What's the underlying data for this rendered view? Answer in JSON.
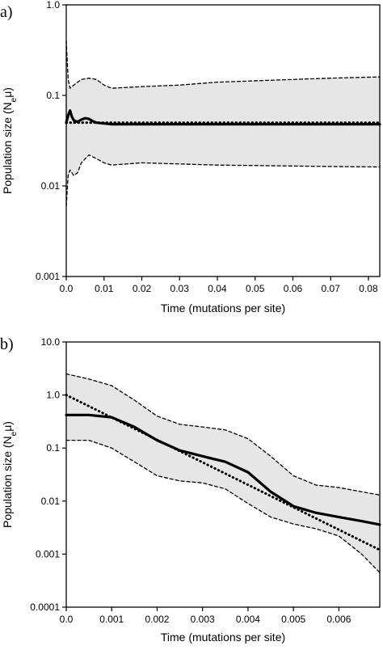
{
  "chart_data": [
    {
      "panel_label": "a)",
      "type": "line",
      "yscale": "log",
      "xlabel": "Time (mutations per site)",
      "ylabel": {
        "base": "Population size (N",
        "sub": "e",
        "tail": "μ)"
      },
      "xlim": [
        0,
        0.083
      ],
      "ylim": [
        0.001,
        1.0
      ],
      "xticks": [
        0.0,
        0.01,
        0.02,
        0.03,
        0.04,
        0.05,
        0.06,
        0.07,
        0.08
      ],
      "xtick_labels": [
        "0.0",
        "0.01",
        "0.02",
        "0.03",
        "0.04",
        "0.05",
        "0.06",
        "0.07",
        "0.08"
      ],
      "yticks": [
        0.001,
        0.01,
        0.1,
        1.0
      ],
      "ytick_labels": [
        "0.001",
        "0.01",
        "0.1",
        "1.0"
      ],
      "band_color": "#e6e6e6",
      "series": [
        {
          "role": "upper",
          "style": "dashed",
          "x": [
            0,
            0.0005,
            0.001,
            0.002,
            0.003,
            0.004,
            0.006,
            0.008,
            0.01,
            0.012,
            0.02,
            0.03,
            0.04,
            0.05,
            0.06,
            0.07,
            0.083
          ],
          "y": [
            0.4,
            0.15,
            0.12,
            0.13,
            0.14,
            0.15,
            0.155,
            0.15,
            0.13,
            0.12,
            0.125,
            0.13,
            0.14,
            0.145,
            0.15,
            0.155,
            0.16
          ]
        },
        {
          "role": "lower",
          "style": "dashed",
          "x": [
            0,
            0.0005,
            0.001,
            0.002,
            0.003,
            0.004,
            0.006,
            0.008,
            0.01,
            0.012,
            0.02,
            0.03,
            0.04,
            0.05,
            0.06,
            0.07,
            0.083
          ],
          "y": [
            0.006,
            0.013,
            0.015,
            0.013,
            0.014,
            0.018,
            0.022,
            0.02,
            0.018,
            0.017,
            0.018,
            0.0175,
            0.017,
            0.0168,
            0.0166,
            0.0164,
            0.0162
          ]
        },
        {
          "role": "median",
          "style": "solid",
          "x": [
            0,
            0.0005,
            0.001,
            0.0015,
            0.002,
            0.003,
            0.004,
            0.005,
            0.006,
            0.007,
            0.008,
            0.01,
            0.012,
            0.02,
            0.04,
            0.06,
            0.083
          ],
          "y": [
            0.05,
            0.06,
            0.068,
            0.058,
            0.053,
            0.051,
            0.054,
            0.056,
            0.055,
            0.052,
            0.05,
            0.049,
            0.048,
            0.048,
            0.048,
            0.048,
            0.048
          ]
        },
        {
          "role": "true",
          "style": "dotted",
          "x": [
            0,
            0.083
          ],
          "y": [
            0.05,
            0.05
          ]
        }
      ]
    },
    {
      "panel_label": "b)",
      "type": "line",
      "yscale": "log",
      "xlabel": "Time (mutations per site)",
      "ylabel": {
        "base": "Population size (N",
        "sub": "e",
        "tail": "μ)"
      },
      "xlim": [
        0,
        0.0069
      ],
      "ylim": [
        0.0001,
        10.0
      ],
      "xticks": [
        0.0,
        0.001,
        0.002,
        0.003,
        0.004,
        0.005,
        0.006
      ],
      "xtick_labels": [
        "0.0",
        "0.001",
        "0.002",
        "0.003",
        "0.004",
        "0.005",
        "0.006"
      ],
      "yticks": [
        0.0001,
        0.001,
        0.01,
        0.1,
        1.0,
        10.0
      ],
      "ytick_labels": [
        "0.0001",
        "0.001",
        "0.01",
        "0.1",
        "1.0",
        "10.0"
      ],
      "band_color": "#e6e6e6",
      "series": [
        {
          "role": "upper",
          "style": "dashed",
          "x": [
            0,
            0.0005,
            0.001,
            0.0015,
            0.002,
            0.0025,
            0.003,
            0.0035,
            0.004,
            0.0045,
            0.005,
            0.0055,
            0.006,
            0.0065,
            0.0069
          ],
          "y": [
            2.5,
            2.0,
            1.5,
            0.8,
            0.4,
            0.28,
            0.25,
            0.22,
            0.15,
            0.07,
            0.03,
            0.02,
            0.018,
            0.015,
            0.013
          ]
        },
        {
          "role": "lower",
          "style": "dashed",
          "x": [
            0,
            0.0005,
            0.001,
            0.0015,
            0.002,
            0.0025,
            0.003,
            0.0035,
            0.004,
            0.0045,
            0.005,
            0.0055,
            0.006,
            0.0065,
            0.0069
          ],
          "y": [
            0.14,
            0.14,
            0.1,
            0.055,
            0.03,
            0.024,
            0.022,
            0.017,
            0.009,
            0.005,
            0.0037,
            0.003,
            0.0022,
            0.001,
            0.00045
          ]
        },
        {
          "role": "median",
          "style": "solid",
          "x": [
            0,
            0.0005,
            0.001,
            0.0015,
            0.002,
            0.0025,
            0.003,
            0.0035,
            0.004,
            0.0045,
            0.005,
            0.0055,
            0.006,
            0.0065,
            0.0069
          ],
          "y": [
            0.42,
            0.42,
            0.38,
            0.25,
            0.14,
            0.09,
            0.07,
            0.055,
            0.035,
            0.015,
            0.008,
            0.006,
            0.005,
            0.0042,
            0.0036
          ]
        },
        {
          "role": "true",
          "style": "dotted",
          "x": [
            0,
            0.0069
          ],
          "y": [
            1.0,
            0.0012
          ]
        }
      ]
    }
  ]
}
